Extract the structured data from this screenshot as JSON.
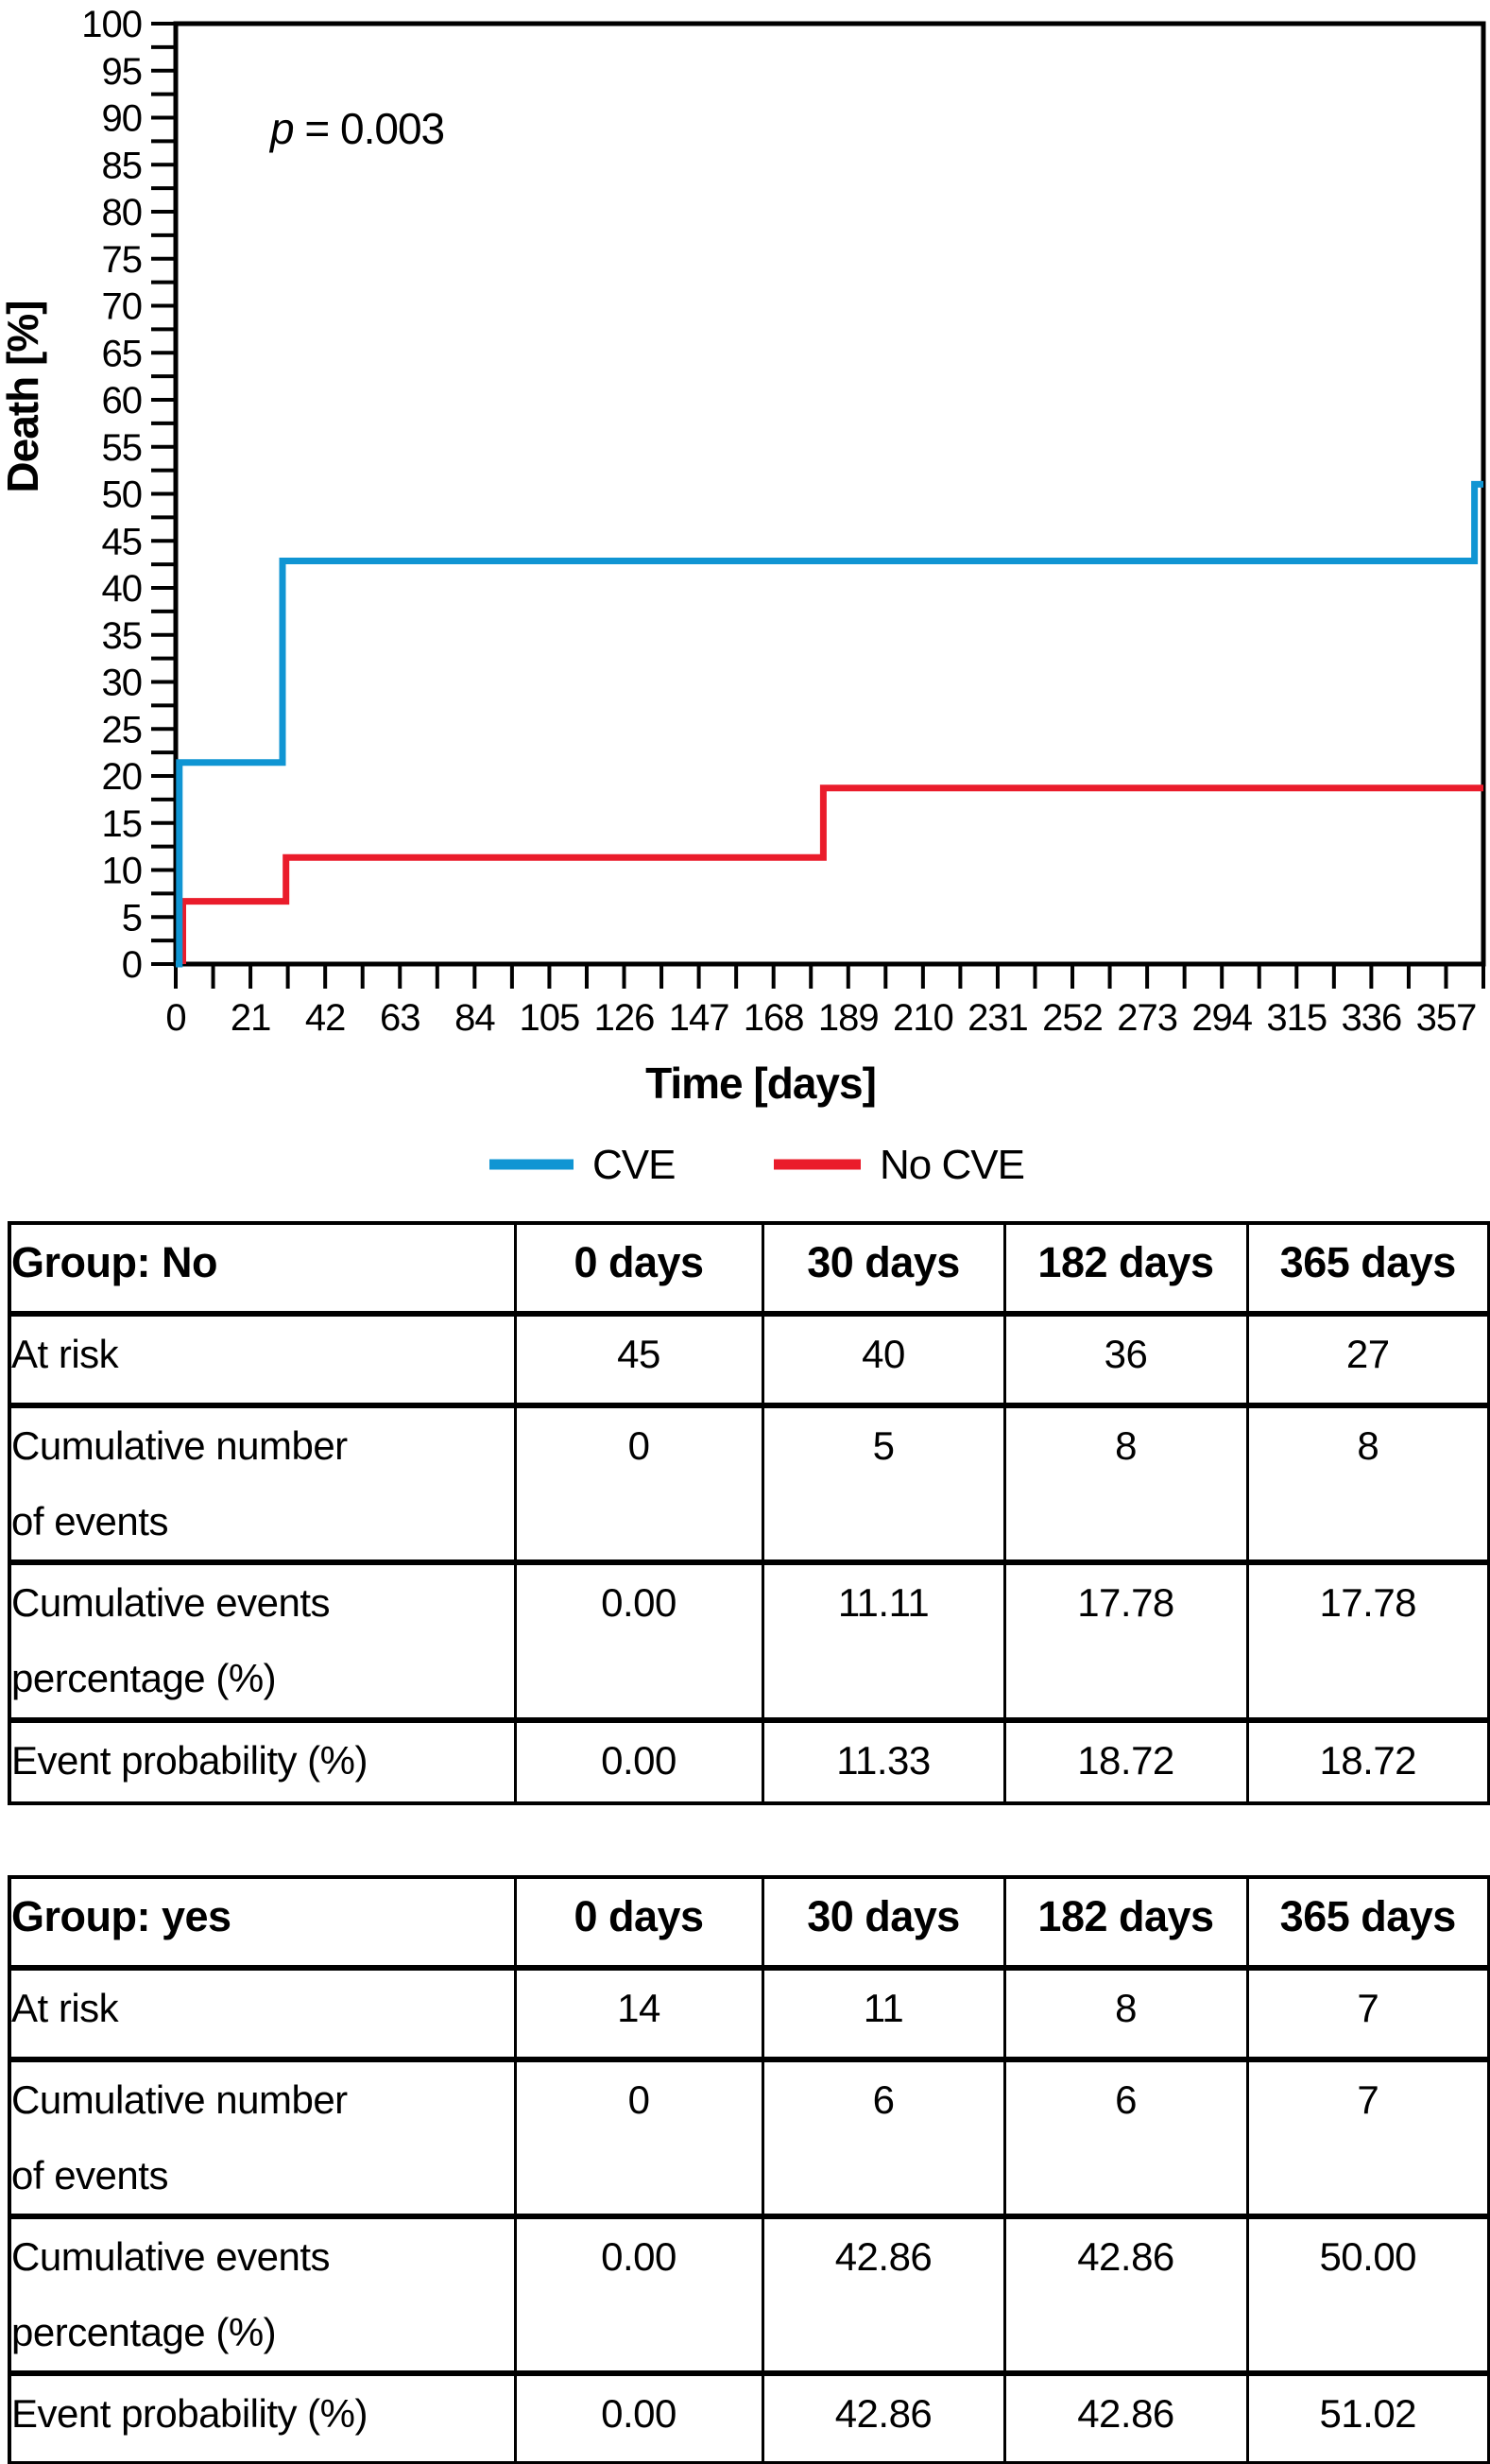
{
  "chart": {
    "annotation": {
      "italic": "p",
      "text": " = 0.003"
    },
    "y_axis_label": "Death [%]",
    "x_axis_label": "Time [days]",
    "y_tick_labels": [
      "0",
      "5",
      "10",
      "15",
      "20",
      "25",
      "30",
      "35",
      "40",
      "45",
      "50",
      "55",
      "60",
      "65",
      "70",
      "75",
      "80",
      "85",
      "90",
      "95",
      "100"
    ],
    "x_tick_labels": [
      "0",
      "21",
      "42",
      "63",
      "84",
      "105",
      "126",
      "147",
      "168",
      "189",
      "210",
      "231",
      "252",
      "273",
      "294",
      "315",
      "336",
      "357"
    ],
    "legend": [
      {
        "label": "CVE",
        "color": "#1095d3"
      },
      {
        "label": "No CVE",
        "color": "#ea1c2b"
      }
    ]
  },
  "chart_data": {
    "type": "line",
    "subtype": "kaplan-meier-step",
    "title": "",
    "xlabel": "Time [days]",
    "ylabel": "Death [%]",
    "xlim": [
      0,
      367.5
    ],
    "ylim": [
      0,
      100
    ],
    "x_major_tick_step": 21,
    "x_minor_tick_step": 10.5,
    "y_major_tick_step": 5,
    "y_minor_tick_step": 2.5,
    "grid": false,
    "legend_position": "bottom",
    "annotations": [
      {
        "text": "p = 0.003",
        "x_day": 26,
        "y_pct": 91
      }
    ],
    "series": [
      {
        "name": "CVE",
        "color": "#1095d3",
        "step_points": [
          [
            0,
            0
          ],
          [
            1,
            0
          ],
          [
            1,
            21.43
          ],
          [
            30,
            21.43
          ],
          [
            30,
            42.86
          ],
          [
            365,
            42.86
          ],
          [
            365,
            51.02
          ],
          [
            367.5,
            51.02
          ]
        ]
      },
      {
        "name": "No CVE",
        "color": "#ea1c2b",
        "step_points": [
          [
            2,
            0
          ],
          [
            2,
            6.67
          ],
          [
            31,
            6.67
          ],
          [
            31,
            11.33
          ],
          [
            182,
            11.33
          ],
          [
            182,
            18.72
          ],
          [
            367.5,
            18.72
          ]
        ]
      }
    ]
  },
  "tables": [
    {
      "header": [
        "Group: No",
        "0 days",
        "30 days",
        "182 days",
        "365 days"
      ],
      "rows": [
        [
          "At risk",
          "45",
          "40",
          "36",
          "27"
        ],
        [
          "Cumulative number\nof events",
          "0",
          "5",
          "8",
          "8"
        ],
        [
          "Cumulative events\npercentage (%)",
          "0.00",
          "11.11",
          "17.78",
          "17.78"
        ],
        [
          "Event probability (%)",
          "0.00",
          "11.33",
          "18.72",
          "18.72"
        ]
      ]
    },
    {
      "header": [
        "Group: yes",
        "0 days",
        "30 days",
        "182 days",
        "365 days"
      ],
      "rows": [
        [
          "At risk",
          "14",
          "11",
          "8",
          "7"
        ],
        [
          "Cumulative number\nof events",
          "0",
          "6",
          "6",
          "7"
        ],
        [
          "Cumulative events\npercentage (%)",
          "0.00",
          "42.86",
          "42.86",
          "50.00"
        ],
        [
          "Event probability (%)",
          "0.00",
          "42.86",
          "42.86",
          "51.02"
        ]
      ]
    }
  ]
}
